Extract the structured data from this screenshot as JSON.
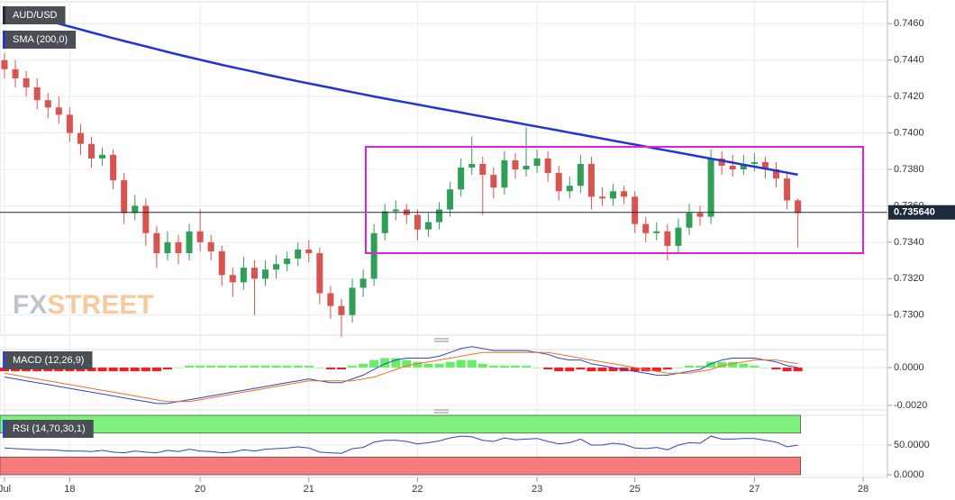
{
  "chart_data": [
    {
      "type": "candlestick",
      "name": "AUD/USD",
      "up_color": "#2f9e57",
      "down_color": "#d9534f",
      "categories": [
        "Jul",
        null,
        null,
        null,
        null,
        null,
        "18",
        null,
        null,
        null,
        null,
        null,
        null,
        null,
        null,
        null,
        null,
        null,
        "20",
        null,
        null,
        null,
        null,
        null,
        null,
        null,
        null,
        null,
        "21",
        null,
        null,
        null,
        null,
        null,
        null,
        null,
        null,
        null,
        "22",
        null,
        null,
        null,
        null,
        null,
        null,
        null,
        null,
        null,
        null,
        "23",
        null,
        null,
        null,
        null,
        null,
        null,
        null,
        null,
        "25",
        null,
        null,
        null,
        null,
        null,
        null,
        null,
        null,
        null,
        null,
        "27",
        null,
        null,
        null,
        null,
        null,
        null,
        null,
        null,
        null,
        "28"
      ],
      "candles": [
        [
          0.744,
          0.7444,
          0.743,
          0.7435
        ],
        [
          0.7435,
          0.744,
          0.7425,
          0.743
        ],
        [
          0.743,
          0.7434,
          0.742,
          0.7425
        ],
        [
          0.7425,
          0.743,
          0.7413,
          0.7418
        ],
        [
          0.7418,
          0.7422,
          0.7408,
          0.7414
        ],
        [
          0.7414,
          0.742,
          0.7405,
          0.741
        ],
        [
          0.741,
          0.7414,
          0.7395,
          0.74
        ],
        [
          0.74,
          0.7405,
          0.7388,
          0.7394
        ],
        [
          0.7394,
          0.7398,
          0.7381,
          0.7386
        ],
        [
          0.7386,
          0.7392,
          0.7382,
          0.7388
        ],
        [
          0.7388,
          0.7391,
          0.7369,
          0.7374
        ],
        [
          0.7374,
          0.7378,
          0.735,
          0.7356
        ],
        [
          0.7356,
          0.7366,
          0.7352,
          0.736
        ],
        [
          0.736,
          0.7364,
          0.7338,
          0.7345
        ],
        [
          0.7345,
          0.7349,
          0.7326,
          0.7334
        ],
        [
          0.7334,
          0.7346,
          0.733,
          0.734
        ],
        [
          0.734,
          0.7344,
          0.7328,
          0.7334
        ],
        [
          0.7334,
          0.735,
          0.733,
          0.7346
        ],
        [
          0.7346,
          0.7358,
          0.7335,
          0.734
        ],
        [
          0.734,
          0.7344,
          0.733,
          0.7335
        ],
        [
          0.7335,
          0.7338,
          0.7316,
          0.7322
        ],
        [
          0.7322,
          0.7326,
          0.731,
          0.7318
        ],
        [
          0.7318,
          0.7332,
          0.7314,
          0.7326
        ],
        [
          0.7326,
          0.733,
          0.73,
          0.732
        ],
        [
          0.732,
          0.733,
          0.7316,
          0.7325
        ],
        [
          0.7325,
          0.7333,
          0.732,
          0.7328
        ],
        [
          0.7328,
          0.7335,
          0.7324,
          0.7331
        ],
        [
          0.7331,
          0.734,
          0.7327,
          0.7336
        ],
        [
          0.7336,
          0.7341,
          0.7329,
          0.7334
        ],
        [
          0.7334,
          0.7337,
          0.7306,
          0.7312
        ],
        [
          0.7312,
          0.7316,
          0.7298,
          0.7305
        ],
        [
          0.7305,
          0.7309,
          0.7288,
          0.73
        ],
        [
          0.73,
          0.732,
          0.7296,
          0.7315
        ],
        [
          0.7315,
          0.7325,
          0.731,
          0.732
        ],
        [
          0.732,
          0.735,
          0.7316,
          0.7345
        ],
        [
          0.7345,
          0.7361,
          0.7341,
          0.7357
        ],
        [
          0.7357,
          0.7363,
          0.7352,
          0.7358
        ],
        [
          0.7358,
          0.7361,
          0.735,
          0.7355
        ],
        [
          0.7355,
          0.7358,
          0.7341,
          0.7347
        ],
        [
          0.7347,
          0.7356,
          0.7343,
          0.7351
        ],
        [
          0.7351,
          0.7362,
          0.7347,
          0.7358
        ],
        [
          0.7358,
          0.7373,
          0.7354,
          0.7369
        ],
        [
          0.7369,
          0.7386,
          0.7365,
          0.7381
        ],
        [
          0.7381,
          0.7398,
          0.7377,
          0.7383
        ],
        [
          0.7383,
          0.7387,
          0.7355,
          0.7377
        ],
        [
          0.7377,
          0.7381,
          0.7364,
          0.737
        ],
        [
          0.737,
          0.739,
          0.7366,
          0.7385
        ],
        [
          0.7385,
          0.7389,
          0.7375,
          0.738
        ],
        [
          0.738,
          0.7403,
          0.7376,
          0.7382
        ],
        [
          0.7382,
          0.7391,
          0.7378,
          0.7386
        ],
        [
          0.7386,
          0.739,
          0.7373,
          0.7378
        ],
        [
          0.7378,
          0.7382,
          0.7363,
          0.7368
        ],
        [
          0.7368,
          0.7376,
          0.7364,
          0.7371
        ],
        [
          0.7371,
          0.7388,
          0.7367,
          0.7383
        ],
        [
          0.7383,
          0.7387,
          0.7358,
          0.7365
        ],
        [
          0.7365,
          0.737,
          0.736,
          0.7364
        ],
        [
          0.7364,
          0.7372,
          0.736,
          0.7368
        ],
        [
          0.7368,
          0.7371,
          0.7361,
          0.7365
        ],
        [
          0.7365,
          0.7368,
          0.7345,
          0.735
        ],
        [
          0.735,
          0.7354,
          0.734,
          0.7345
        ],
        [
          0.7345,
          0.7351,
          0.7341,
          0.7346
        ],
        [
          0.7346,
          0.735,
          0.733,
          0.7338
        ],
        [
          0.7338,
          0.7353,
          0.7334,
          0.7348
        ],
        [
          0.7348,
          0.7361,
          0.7344,
          0.7356
        ],
        [
          0.7356,
          0.736,
          0.7349,
          0.7354
        ],
        [
          0.7354,
          0.7391,
          0.735,
          0.7386
        ],
        [
          0.7386,
          0.739,
          0.7377,
          0.7382
        ],
        [
          0.7382,
          0.7388,
          0.7376,
          0.738
        ],
        [
          0.738,
          0.7388,
          0.7377,
          0.7383
        ],
        [
          0.7383,
          0.7389,
          0.7379,
          0.7384
        ],
        [
          0.7384,
          0.7387,
          0.7375,
          0.738
        ],
        [
          0.738,
          0.7384,
          0.737,
          0.7375
        ],
        [
          0.7375,
          0.7379,
          0.7358,
          0.7363
        ],
        [
          0.7363,
          0.7364,
          0.7337,
          0.7356
        ],
        null,
        null,
        null,
        null,
        null,
        null
      ],
      "overlay": {
        "name": "SMA (200,0)",
        "color": "#1f35d6",
        "values": [
          0.7468,
          0.74664,
          0.74648,
          0.74632,
          0.74616,
          0.746,
          0.74584,
          0.74568,
          0.74552,
          0.74536,
          0.7452,
          0.74505,
          0.7449,
          0.74475,
          0.7446,
          0.74445,
          0.7443,
          0.74416,
          0.74402,
          0.74388,
          0.74374,
          0.74361,
          0.74348,
          0.74335,
          0.74322,
          0.74309,
          0.74296,
          0.74284,
          0.74272,
          0.7426,
          0.74248,
          0.74236,
          0.74224,
          0.74212,
          0.742,
          0.74189,
          0.74178,
          0.74167,
          0.74156,
          0.74145,
          0.74134,
          0.74123,
          0.74112,
          0.74101,
          0.7409,
          0.74079,
          0.74068,
          0.74057,
          0.74046,
          0.74035,
          0.74024,
          0.74013,
          0.74002,
          0.73991,
          0.7398,
          0.73969,
          0.73958,
          0.73947,
          0.73936,
          0.73925,
          0.73914,
          0.73903,
          0.73892,
          0.73881,
          0.7387,
          0.73859,
          0.73848,
          0.73837,
          0.73826,
          0.73815,
          0.73804,
          0.73793,
          0.73782,
          0.73771,
          null,
          null,
          null,
          null,
          null,
          null
        ]
      },
      "ylim": [
        0.7289,
        0.7472
      ],
      "yticks": [
        {
          "value": 0.73,
          "label": "0.7300"
        },
        {
          "value": 0.732,
          "label": "0.7320"
        },
        {
          "value": 0.734,
          "label": "0.7340"
        },
        {
          "value": 0.736,
          "label": "0.7360"
        },
        {
          "value": 0.738,
          "label": "0.7380"
        },
        {
          "value": 0.74,
          "label": "0.7400"
        },
        {
          "value": 0.742,
          "label": "0.7420"
        },
        {
          "value": 0.744,
          "label": "0.7440"
        },
        {
          "value": 0.746,
          "label": "0.7460"
        }
      ],
      "last_price": {
        "value": 0.73564,
        "label": "0.735640"
      },
      "grid": true
    },
    {
      "type": "macd",
      "name": "MACD (12,26,9)",
      "series": [
        {
          "color": "#2f45c8",
          "values": [
            -0.0005,
            -0.0006,
            -0.0007,
            -0.0008,
            -0.0009,
            -0.001,
            -0.0011,
            -0.0012,
            -0.0013,
            -0.0014,
            -0.0015,
            -0.0016,
            -0.0017,
            -0.0018,
            -0.0019,
            -0.0019,
            -0.0018,
            -0.0017,
            -0.0016,
            -0.0015,
            -0.0014,
            -0.0013,
            -0.0012,
            -0.0011,
            -0.001,
            -0.0009,
            -0.0008,
            -0.0007,
            -0.0006,
            -0.0007,
            -0.0008,
            -0.0008,
            -0.0006,
            -0.0004,
            -0.0001,
            0.0002,
            0.0004,
            0.0005,
            0.0005,
            0.0005,
            0.0006,
            0.0008,
            0.001,
            0.0011,
            0.001,
            0.0009,
            0.0009,
            0.0009,
            0.0009,
            0.0008,
            0.0007,
            0.0005,
            0.0004,
            0.0004,
            0.0002,
            0.0001,
            0.0,
            -0.0001,
            -0.0002,
            -0.0003,
            -0.0004,
            -0.0004,
            -0.0003,
            -0.0002,
            -0.0001,
            0.0002,
            0.0004,
            0.0005,
            0.0005,
            0.0005,
            0.0004,
            0.0003,
            0.0001,
            0.0,
            null,
            null,
            null,
            null,
            null,
            null
          ]
        },
        {
          "color": "#f07020",
          "values": [
            -0.0003,
            -0.0004,
            -0.0005,
            -0.0006,
            -0.0007,
            -0.0008,
            -0.0009,
            -0.001,
            -0.0011,
            -0.0012,
            -0.0013,
            -0.0014,
            -0.0015,
            -0.0016,
            -0.0017,
            -0.0018,
            -0.0018,
            -0.0018,
            -0.0017,
            -0.0016,
            -0.0015,
            -0.0014,
            -0.0013,
            -0.0012,
            -0.0011,
            -0.001,
            -0.0009,
            -0.0008,
            -0.0007,
            -0.0007,
            -0.0007,
            -0.0007,
            -0.0007,
            -0.0006,
            -0.0005,
            -0.0003,
            -0.0001,
            0.0001,
            0.0002,
            0.0003,
            0.0004,
            0.0005,
            0.0006,
            0.0007,
            0.0008,
            0.0008,
            0.0008,
            0.0008,
            0.0008,
            0.0008,
            0.0008,
            0.0007,
            0.0006,
            0.0005,
            0.0004,
            0.0003,
            0.0002,
            0.0001,
            0.0,
            -0.0001,
            -0.0002,
            -0.0003,
            -0.0003,
            -0.0003,
            -0.0002,
            -0.0001,
            0.0001,
            0.0002,
            0.0003,
            0.0004,
            0.0004,
            0.0004,
            0.0003,
            0.0002,
            null,
            null,
            null,
            null,
            null,
            null
          ]
        }
      ],
      "histogram": {
        "up_color": "#66ee66",
        "down_color": "#ee2222",
        "values": [
          -0.0002,
          -0.0002,
          -0.0002,
          -0.0002,
          -0.0002,
          -0.0002,
          -0.0002,
          -0.0002,
          -0.0002,
          -0.0002,
          -0.0002,
          -0.0002,
          -0.0002,
          -0.0002,
          -0.0002,
          -0.0001,
          0.0,
          0.0001,
          0.0001,
          0.0001,
          0.0001,
          0.0001,
          0.0001,
          0.0001,
          0.0001,
          0.0001,
          0.0001,
          0.0001,
          0.0001,
          0.0,
          -0.0001,
          -0.0001,
          0.0001,
          0.0002,
          0.0004,
          0.0005,
          0.0005,
          0.0004,
          0.0003,
          0.0002,
          0.0002,
          0.0003,
          0.0004,
          0.0004,
          0.0002,
          0.0001,
          0.0001,
          0.0001,
          0.0001,
          0.0,
          -0.0001,
          -0.0002,
          -0.0002,
          -0.0001,
          -0.0002,
          -0.0002,
          -0.0002,
          -0.0002,
          -0.0002,
          -0.0002,
          -0.0002,
          -0.0001,
          0.0,
          0.0001,
          0.0001,
          0.0003,
          0.0003,
          0.0003,
          0.0002,
          0.0001,
          0.0,
          -0.0001,
          -0.0002,
          -0.0002,
          null,
          null,
          null,
          null,
          null,
          null
        ]
      },
      "ylim": [
        -0.00224,
        0.00095
      ],
      "yticks": [
        {
          "value": 0,
          "label": "0.0000"
        },
        {
          "value": -0.002,
          "label": "-0.0020"
        }
      ]
    },
    {
      "type": "rsi",
      "name": "RSI (14,70,30,1)",
      "color": "#2f45c8",
      "values": [
        45,
        44,
        43,
        42,
        42,
        41,
        40,
        40,
        39,
        41,
        38,
        37,
        40,
        38,
        37,
        41,
        39,
        43,
        40,
        39,
        37,
        38,
        42,
        40,
        43,
        44,
        45,
        47,
        45,
        38,
        37,
        36,
        44,
        46,
        55,
        58,
        58,
        56,
        52,
        54,
        57,
        62,
        65,
        64,
        58,
        56,
        62,
        59,
        60,
        61,
        56,
        52,
        54,
        60,
        50,
        50,
        53,
        51,
        45,
        44,
        46,
        42,
        50,
        54,
        53,
        65,
        60,
        60,
        61,
        61,
        58,
        55,
        47,
        50,
        null,
        null,
        null,
        null,
        null,
        null
      ],
      "bands": {
        "upper": 70,
        "lower": 30,
        "upper_color": "#7ef07e",
        "lower_color": "#f77b7b"
      },
      "ylim": [
        0,
        100
      ],
      "yticks": [
        {
          "value": 0,
          "label": "0.0000"
        },
        {
          "value": 50,
          "label": "50.0000"
        }
      ]
    }
  ],
  "watermark": {
    "first": "FX",
    "second": "STREET"
  }
}
